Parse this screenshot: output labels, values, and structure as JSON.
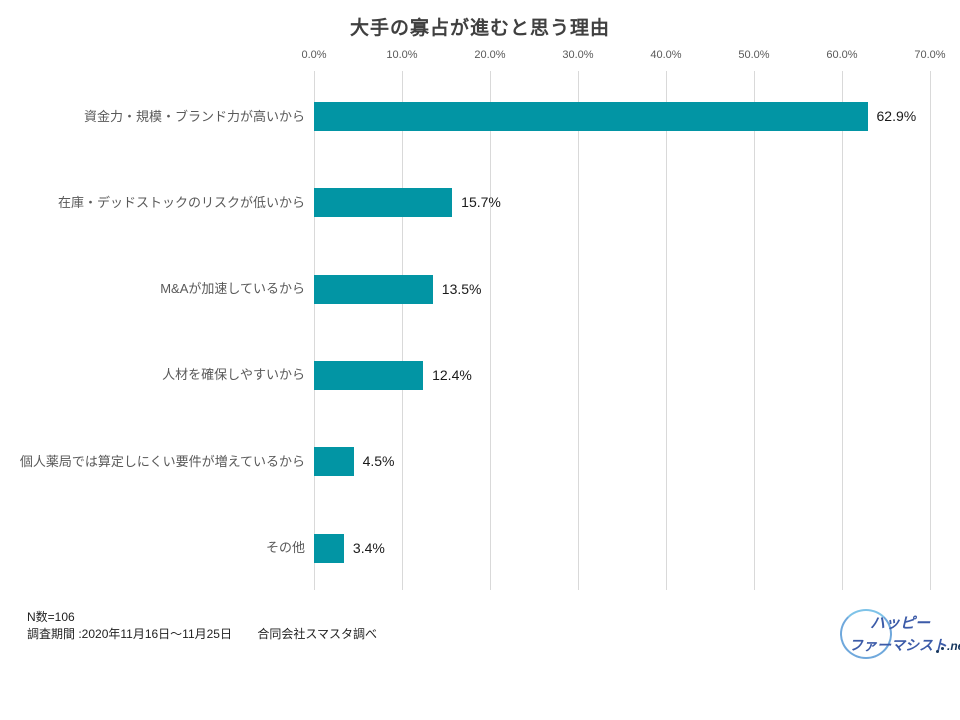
{
  "title": "大手の寡占が進むと思う理由",
  "chart_data": {
    "type": "bar",
    "orientation": "horizontal",
    "title": "大手の寡占が進むと思う理由",
    "categories": [
      "資金力・規模・ブランド力が高いから",
      "在庫・デッドストックのリスクが低いから",
      "M&Aが加速しているから",
      "人材を確保しやすいから",
      "個人薬局では算定しにくい要件が増えているから",
      "その他"
    ],
    "values": [
      62.9,
      15.7,
      13.5,
      12.4,
      4.5,
      3.4
    ],
    "value_labels": [
      "62.9%",
      "15.7%",
      "13.5%",
      "12.4%",
      "4.5%",
      "3.4%"
    ],
    "x_ticks": [
      "0.0%",
      "10.0%",
      "20.0%",
      "30.0%",
      "40.0%",
      "50.0%",
      "60.0%",
      "70.0%"
    ],
    "xlim": [
      0,
      70
    ],
    "grid": true,
    "legend": false,
    "bar_color": "#0295a4",
    "gridline_color": "#d9d9d9"
  },
  "footer": {
    "sample_size": "N数=106",
    "survey_period": "調査期間 :2020年11月16日～11月25日",
    "source": "合同会社スマスタ調べ"
  },
  "logo": {
    "line1": "ハッピー",
    "line2": "ファーマシスト",
    "suffix": ".net",
    "text_color": "#3c5ba8",
    "suffix_color": "#17375e"
  }
}
